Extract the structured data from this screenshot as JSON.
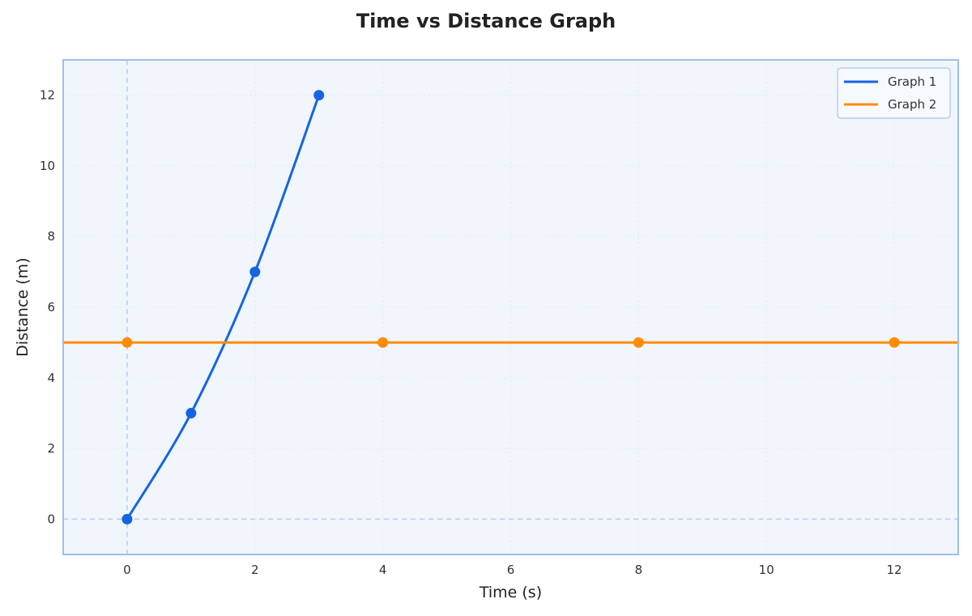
{
  "chart_data": {
    "type": "line",
    "title": "Time vs Distance Graph",
    "xlabel": "Time (s)",
    "ylabel": "Distance (m)",
    "xlim": [
      -1,
      13
    ],
    "ylim": [
      -1,
      13
    ],
    "x_ticks": [
      0,
      2,
      4,
      6,
      8,
      10,
      12
    ],
    "y_ticks": [
      0,
      2,
      4,
      6,
      8,
      10,
      12
    ],
    "grid": true,
    "legend_position": "upper right",
    "series": [
      {
        "name": "Graph 1",
        "color": "#1565e0",
        "x": [
          0,
          1,
          2,
          3
        ],
        "y": [
          0,
          3,
          7,
          12
        ],
        "smooth": true
      },
      {
        "name": "Graph 2",
        "color": "#ff8c00",
        "x": [
          0,
          4,
          8,
          12
        ],
        "y": [
          5,
          5,
          5,
          5
        ],
        "extend_full_width": true
      }
    ],
    "reference_lines": {
      "x0": true,
      "y0": true
    }
  },
  "colors": {
    "plot_background": "#f1f6fd",
    "plot_border": "#9dbef0",
    "grid": "#dde6f3",
    "reference_line": "#b8cff5"
  }
}
